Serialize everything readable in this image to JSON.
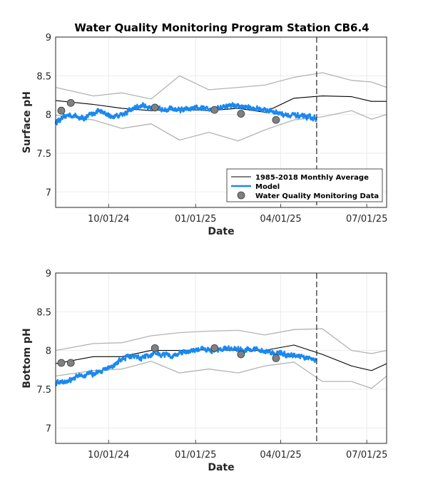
{
  "title": "Water Quality Monitoring Program Station CB6.4",
  "colors": {
    "average": "#000000",
    "model": "#1a88f0",
    "envelope": "#b3b3b3",
    "observed": "#808080",
    "forecast_line": "#262626"
  },
  "chart_data": [
    {
      "type": "line",
      "ylabel": "Surface pH",
      "xlabel": "Date",
      "xlim": [
        "2024-08-06",
        "2025-07-22"
      ],
      "ylim": [
        6.8,
        9
      ],
      "yticks": [
        "7",
        "7.5",
        "8",
        "8.5",
        "9"
      ],
      "xticks": [
        "10/01/24",
        "01/01/25",
        "04/01/25",
        "07/01/25"
      ],
      "grid": true,
      "legend_position": "lower-right",
      "legend": [
        "1985-2018 Monthly Average",
        "Model",
        "Water Quality Monitoring Data"
      ],
      "forecast_line_x": "2025-05-09",
      "monthly_average": {
        "x": [
          "2024-08-06",
          "2024-09-15",
          "2024-10-15",
          "2024-11-15",
          "2024-12-15",
          "2025-01-15",
          "2025-02-15",
          "2025-03-15",
          "2025-04-15",
          "2025-05-15",
          "2025-06-15",
          "2025-07-06",
          "2025-07-22"
        ],
        "y": [
          8.18,
          8.13,
          8.08,
          8.05,
          8.07,
          8.05,
          8.08,
          8.03,
          8.21,
          8.24,
          8.23,
          8.17,
          8.17
        ]
      },
      "upper_envelope": {
        "x": [
          "2024-08-06",
          "2024-09-15",
          "2024-10-15",
          "2024-11-15",
          "2024-12-15",
          "2025-01-15",
          "2025-02-15",
          "2025-03-15",
          "2025-04-15",
          "2025-05-15",
          "2025-06-15",
          "2025-07-06",
          "2025-07-22"
        ],
        "y": [
          8.35,
          8.24,
          8.28,
          8.2,
          8.5,
          8.32,
          8.35,
          8.38,
          8.48,
          8.54,
          8.44,
          8.42,
          8.35
        ]
      },
      "lower_envelope": {
        "x": [
          "2024-08-06",
          "2024-09-15",
          "2024-10-15",
          "2024-11-15",
          "2024-12-15",
          "2025-01-15",
          "2025-02-15",
          "2025-03-15",
          "2025-04-15",
          "2025-05-15",
          "2025-06-15",
          "2025-07-06",
          "2025-07-22"
        ],
        "y": [
          7.99,
          7.93,
          7.82,
          7.88,
          7.67,
          7.77,
          7.66,
          7.8,
          7.93,
          7.97,
          8.05,
          7.94,
          8.0
        ]
      },
      "model": {
        "x": [
          "2024-08-06",
          "2024-08-20",
          "2024-09-05",
          "2024-09-20",
          "2024-10-05",
          "2024-10-20",
          "2024-11-05",
          "2024-11-20",
          "2024-12-05",
          "2024-12-20",
          "2025-01-05",
          "2025-01-20",
          "2025-02-05",
          "2025-02-20",
          "2025-03-05",
          "2025-03-20",
          "2025-04-05",
          "2025-04-20",
          "2025-05-09"
        ],
        "y": [
          7.9,
          8.0,
          7.95,
          8.05,
          7.97,
          8.03,
          8.12,
          8.08,
          8.07,
          8.06,
          8.08,
          8.07,
          8.12,
          8.1,
          8.08,
          8.05,
          8.0,
          7.98,
          7.95
        ]
      },
      "observed": {
        "x": [
          "2024-08-12",
          "2024-08-22",
          "2024-11-19",
          "2025-01-21",
          "2025-02-18",
          "2025-03-27"
        ],
        "y": [
          8.05,
          8.15,
          8.09,
          8.06,
          8.01,
          7.93
        ]
      }
    },
    {
      "type": "line",
      "ylabel": "Bottom pH",
      "xlabel": "Date",
      "xlim": [
        "2024-08-06",
        "2025-07-22"
      ],
      "ylim": [
        6.8,
        9
      ],
      "yticks": [
        "7",
        "7.5",
        "8",
        "8.5",
        "9"
      ],
      "xticks": [
        "10/01/24",
        "01/01/25",
        "04/01/25",
        "07/01/25"
      ],
      "grid": true,
      "forecast_line_x": "2025-05-09",
      "monthly_average": {
        "x": [
          "2024-08-06",
          "2024-09-15",
          "2024-10-15",
          "2024-11-15",
          "2024-12-15",
          "2025-01-15",
          "2025-02-15",
          "2025-03-15",
          "2025-04-15",
          "2025-05-15",
          "2025-06-15",
          "2025-07-06",
          "2025-07-22"
        ],
        "y": [
          7.83,
          7.92,
          7.92,
          8.0,
          8.0,
          8.01,
          8.0,
          8.0,
          8.07,
          7.95,
          7.8,
          7.74,
          7.83
        ]
      },
      "upper_envelope": {
        "x": [
          "2024-08-06",
          "2024-09-15",
          "2024-10-15",
          "2024-11-15",
          "2024-12-15",
          "2025-01-15",
          "2025-02-15",
          "2025-03-15",
          "2025-04-15",
          "2025-05-15",
          "2025-06-15",
          "2025-07-06",
          "2025-07-22"
        ],
        "y": [
          8.0,
          8.09,
          8.1,
          8.19,
          8.23,
          8.25,
          8.26,
          8.2,
          8.27,
          8.28,
          8.0,
          7.96,
          8.0
        ]
      },
      "lower_envelope": {
        "x": [
          "2024-08-06",
          "2024-09-15",
          "2024-10-15",
          "2024-11-15",
          "2024-12-15",
          "2025-01-15",
          "2025-02-15",
          "2025-03-15",
          "2025-04-15",
          "2025-05-15",
          "2025-06-15",
          "2025-07-06",
          "2025-07-22"
        ],
        "y": [
          7.67,
          7.74,
          7.76,
          7.86,
          7.71,
          7.76,
          7.71,
          7.8,
          7.85,
          7.6,
          7.6,
          7.51,
          7.67
        ]
      },
      "model": {
        "x": [
          "2024-08-06",
          "2024-08-20",
          "2024-09-05",
          "2024-09-20",
          "2024-10-05",
          "2024-10-20",
          "2024-11-05",
          "2024-11-20",
          "2024-12-05",
          "2024-12-20",
          "2025-01-05",
          "2025-01-20",
          "2025-02-05",
          "2025-02-20",
          "2025-03-05",
          "2025-03-20",
          "2025-04-05",
          "2025-04-20",
          "2025-05-09"
        ],
        "y": [
          7.58,
          7.62,
          7.68,
          7.72,
          7.8,
          7.93,
          7.9,
          7.98,
          7.92,
          7.98,
          8.02,
          8.0,
          8.03,
          8.0,
          8.02,
          7.97,
          7.95,
          7.93,
          7.88
        ]
      },
      "observed": {
        "x": [
          "2024-08-12",
          "2024-08-22",
          "2024-11-19",
          "2025-01-21",
          "2025-02-18",
          "2025-03-27"
        ],
        "y": [
          7.84,
          7.84,
          8.03,
          8.03,
          7.95,
          7.9
        ]
      }
    }
  ]
}
